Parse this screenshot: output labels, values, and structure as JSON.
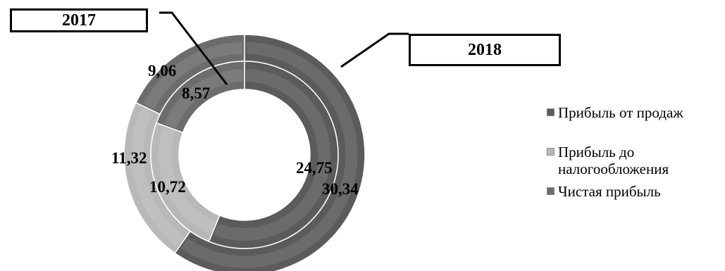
{
  "chart_data": {
    "type": "doughnut",
    "rings": [
      {
        "name": "2018",
        "ring": "outer",
        "values": [
          30.34,
          11.32,
          9.06
        ]
      },
      {
        "name": "2017",
        "ring": "inner",
        "values": [
          24.75,
          10.72,
          8.57
        ]
      }
    ],
    "categories": [
      "Прибыль от продаж",
      "Прибыль до налогообложения",
      "Чистая прибыль"
    ],
    "colors": [
      "#5b5b5b",
      "#b8b8b8",
      "#6c6c6c"
    ],
    "value_labels": {
      "2018": [
        "30,34",
        "11,32",
        "9,06"
      ],
      "2017": [
        "24,75",
        "10,72",
        "8,57"
      ]
    },
    "legend_position": "right"
  },
  "callouts": {
    "year_2017": "2017",
    "year_2018": "2018"
  },
  "legend": {
    "items": [
      {
        "label": "Прибыль от продаж"
      },
      {
        "label_line1": "Прибыль до",
        "label_line2": "налогообложения"
      },
      {
        "label": "Чистая прибыль"
      }
    ]
  }
}
